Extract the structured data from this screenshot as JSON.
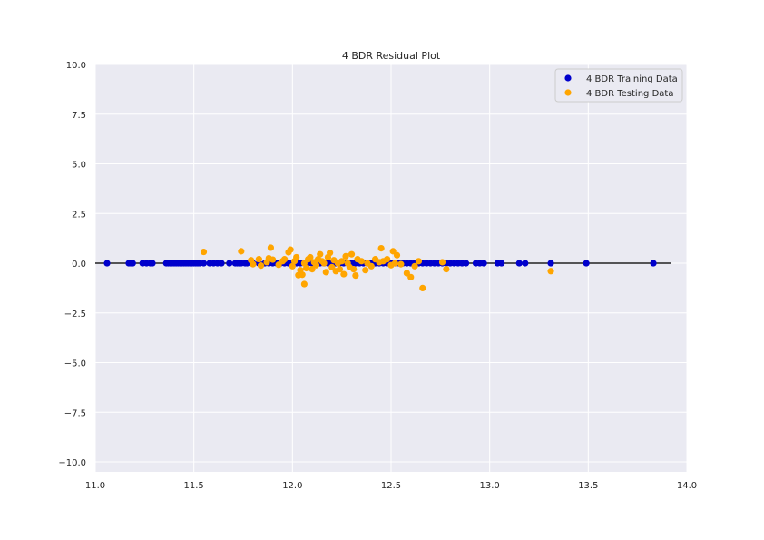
{
  "chart_data": {
    "type": "scatter",
    "title": "4 BDR Residual Plot",
    "xlabel": "",
    "ylabel": "",
    "xlim": [
      11.0,
      14.0
    ],
    "ylim": [
      -10.5,
      10.0
    ],
    "xticks": [
      "11.0",
      "11.5",
      "12.0",
      "12.5",
      "13.0",
      "13.5",
      "14.0"
    ],
    "yticks": [
      "10.0",
      "7.5",
      "5.0",
      "2.5",
      "0.0",
      "−2.5",
      "−5.0",
      "−7.5",
      "−10.0"
    ],
    "grid": true,
    "legend_position": "top-right",
    "reference_line": {
      "y": 0,
      "xmin": 11.0,
      "xmax": 13.92,
      "color": "#222222"
    },
    "colors": {
      "background": "#eaeaf2",
      "grid": "#ffffff"
    },
    "series": [
      {
        "name": "4 BDR Training Data",
        "color": "#0000cc",
        "x": [
          11.06,
          11.17,
          11.18,
          11.19,
          11.24,
          11.26,
          11.28,
          11.29,
          11.36,
          11.37,
          11.38,
          11.39,
          11.4,
          11.41,
          11.42,
          11.43,
          11.44,
          11.45,
          11.46,
          11.47,
          11.48,
          11.49,
          11.5,
          11.51,
          11.52,
          11.53,
          11.55,
          11.58,
          11.6,
          11.62,
          11.64,
          11.68,
          11.71,
          11.72,
          11.73,
          11.74,
          11.76,
          11.77,
          11.8,
          11.83,
          11.86,
          11.88,
          11.9,
          11.92,
          11.94,
          11.96,
          11.98,
          12.0,
          12.02,
          12.04,
          12.06,
          12.08,
          12.1,
          12.12,
          12.14,
          12.16,
          12.18,
          12.2,
          12.22,
          12.24,
          12.26,
          12.28,
          12.3,
          12.32,
          12.34,
          12.36,
          12.38,
          12.4,
          12.42,
          12.44,
          12.46,
          12.48,
          12.5,
          12.52,
          12.54,
          12.56,
          12.58,
          12.6,
          12.62,
          12.64,
          12.66,
          12.68,
          12.7,
          12.72,
          12.74,
          12.76,
          12.78,
          12.8,
          12.82,
          12.84,
          12.86,
          12.88,
          12.93,
          12.95,
          12.97,
          13.04,
          13.06,
          13.15,
          13.18,
          13.31,
          13.49,
          13.83
        ],
        "y": [
          0,
          0,
          0,
          0,
          0,
          0,
          0,
          0,
          0,
          0,
          0,
          0,
          0,
          0,
          0,
          0,
          0,
          0,
          0,
          0,
          0,
          0,
          0,
          0,
          0,
          0,
          0,
          0,
          0,
          0,
          0,
          0,
          0,
          0,
          0,
          0,
          0,
          0,
          0,
          0,
          0,
          0,
          0,
          0,
          0,
          0,
          0,
          0,
          0,
          0,
          0,
          0,
          0,
          0,
          0,
          0,
          0,
          0,
          0,
          0,
          0,
          0,
          0,
          0,
          0,
          0,
          0,
          0,
          0,
          0,
          0,
          0,
          0,
          0,
          0,
          0,
          0,
          0,
          0,
          0,
          0,
          0,
          0,
          0,
          0,
          0,
          0,
          0,
          0,
          0,
          0,
          0,
          0,
          0,
          0,
          0,
          0,
          0,
          0,
          0,
          0,
          0
        ]
      },
      {
        "name": "4 BDR Testing Data",
        "color": "#ffa500",
        "x": [
          11.55,
          11.74,
          11.79,
          11.8,
          11.83,
          11.84,
          11.87,
          11.88,
          11.89,
          11.9,
          11.93,
          11.95,
          11.96,
          11.98,
          11.99,
          12.0,
          12.01,
          12.02,
          12.03,
          12.04,
          12.05,
          12.06,
          12.06,
          12.07,
          12.08,
          12.09,
          12.1,
          12.11,
          12.12,
          12.13,
          12.14,
          12.15,
          12.16,
          12.17,
          12.18,
          12.19,
          12.2,
          12.21,
          12.22,
          12.23,
          12.24,
          12.25,
          12.26,
          12.27,
          12.28,
          12.29,
          12.3,
          12.31,
          12.32,
          12.33,
          12.35,
          12.37,
          12.38,
          12.4,
          12.42,
          12.44,
          12.45,
          12.46,
          12.48,
          12.5,
          12.51,
          12.52,
          12.53,
          12.55,
          12.58,
          12.6,
          12.62,
          12.64,
          12.66,
          12.76,
          12.78,
          13.31
        ],
        "y": [
          0.57,
          0.6,
          0.15,
          -0.05,
          0.2,
          -0.12,
          0.05,
          0.25,
          0.78,
          0.18,
          -0.08,
          0.1,
          0.2,
          0.55,
          0.68,
          -0.15,
          0.1,
          0.3,
          -0.6,
          -0.35,
          -0.58,
          -1.05,
          0.0,
          -0.25,
          0.2,
          0.3,
          -0.3,
          0.05,
          -0.1,
          0.2,
          0.45,
          0.1,
          0.0,
          -0.45,
          0.3,
          0.52,
          -0.2,
          0.15,
          -0.4,
          0.0,
          -0.3,
          0.1,
          -0.55,
          0.35,
          0.0,
          -0.2,
          0.45,
          -0.3,
          -0.62,
          0.2,
          0.1,
          -0.35,
          0.0,
          -0.15,
          0.2,
          0.05,
          0.75,
          0.1,
          0.2,
          -0.1,
          0.6,
          0.0,
          0.4,
          -0.05,
          -0.5,
          -0.7,
          -0.15,
          0.1,
          -1.25,
          0.05,
          -0.3,
          -0.4
        ]
      }
    ]
  }
}
